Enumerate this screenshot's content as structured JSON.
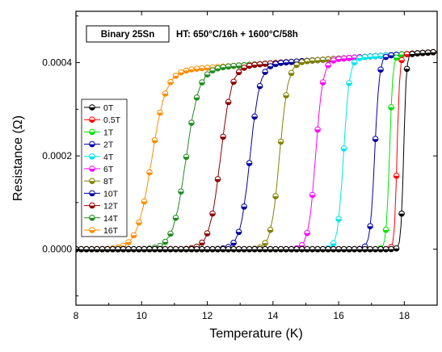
{
  "chart_data": {
    "type": "line",
    "xlabel": "Temperature (K)",
    "ylabel": "Resistance (Ω)",
    "xlim": [
      8,
      19
    ],
    "ylim": [
      -0.00012,
      0.00051
    ],
    "xticks": [
      8,
      10,
      12,
      14,
      16,
      18
    ],
    "yticks": [
      0.0,
      0.0002,
      0.0004
    ],
    "ytick_labels": [
      "0.0000",
      "0.0002",
      "0.0004"
    ],
    "grid": false,
    "legend_position": "left",
    "annotation": {
      "sample": "Binary 25Sn",
      "heat_treatment": "HT: 650°C/16h + 1600°C/58h"
    },
    "series": [
      {
        "name": "0T",
        "color": "#000000",
        "tc": 17.98,
        "width": 0.04
      },
      {
        "name": "0.5T",
        "color": "#ff0000",
        "tc": 17.78,
        "width": 0.04
      },
      {
        "name": "1T",
        "color": "#00e000",
        "tc": 17.55,
        "width": 0.05
      },
      {
        "name": "2T",
        "color": "#0000aa",
        "tc": 17.1,
        "width": 0.07
      },
      {
        "name": "4T",
        "color": "#00e5ee",
        "tc": 16.15,
        "width": 0.09
      },
      {
        "name": "6T",
        "color": "#ff00ff",
        "tc": 15.3,
        "width": 0.11
      },
      {
        "name": "8T",
        "color": "#808000",
        "tc": 14.2,
        "width": 0.13
      },
      {
        "name": "10T",
        "color": "#000099",
        "tc": 13.3,
        "width": 0.15
      },
      {
        "name": "12T",
        "color": "#8b0000",
        "tc": 12.4,
        "width": 0.17
      },
      {
        "name": "14T",
        "color": "#228b22",
        "tc": 11.35,
        "width": 0.2
      },
      {
        "name": "16T",
        "color": "#ff8c00",
        "tc": 10.3,
        "width": 0.22
      }
    ]
  }
}
